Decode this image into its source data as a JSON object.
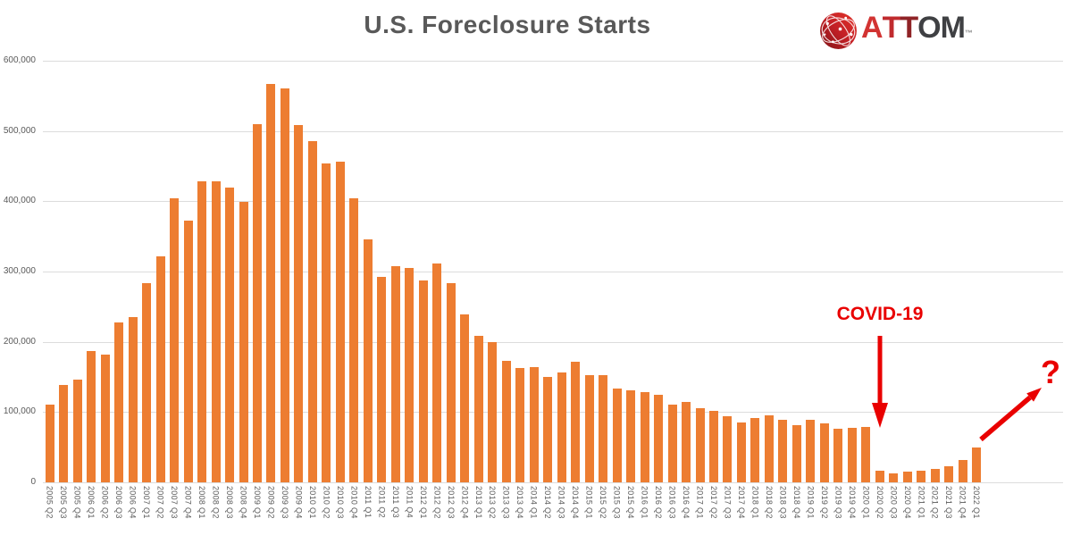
{
  "title": "U.S. Foreclosure Starts",
  "logo": {
    "brand": "ATTOM",
    "tm": "™",
    "icon": "attom-sphere-icon",
    "letters": [
      {
        "ch": "A",
        "color": "#D23332"
      },
      {
        "ch": "T",
        "color": "#C02B2E"
      },
      {
        "ch": "T",
        "color": "#8F2326"
      },
      {
        "ch": "O",
        "color": "#3F4043"
      },
      {
        "ch": "M",
        "color": "#3F4043"
      }
    ]
  },
  "annotations": {
    "covid_label": "COVID-19",
    "question_label": "?"
  },
  "colors": {
    "bar": "#ED7D31",
    "annotation_red": "#E90000",
    "title_gray": "#595959",
    "axis_gray": "#595959",
    "gridline": "#dcdcdc"
  },
  "chart_data": {
    "type": "bar",
    "title": "U.S. Foreclosure Starts",
    "xlabel": "",
    "ylabel": "",
    "ylim": [
      0,
      600000
    ],
    "ytick_interval": 100000,
    "yticks": [
      "600,000",
      "500,000",
      "400,000",
      "300,000",
      "200,000",
      "100,000",
      "0"
    ],
    "grid": true,
    "legend": false,
    "categories": [
      "2005 Q2",
      "2005 Q3",
      "2005 Q4",
      "2006 Q1",
      "2006 Q2",
      "2006 Q3",
      "2006 Q4",
      "2007 Q1",
      "2007 Q2",
      "2007 Q3",
      "2007 Q4",
      "2008 Q1",
      "2008 Q2",
      "2008 Q3",
      "2008 Q4",
      "2009 Q1",
      "2009 Q2",
      "2009 Q3",
      "2009 Q4",
      "2010 Q1",
      "2010 Q2",
      "2010 Q3",
      "2010 Q4",
      "2011 Q1",
      "2011 Q2",
      "2011 Q3",
      "2011 Q4",
      "2012 Q1",
      "2012 Q2",
      "2012 Q3",
      "2012 Q4",
      "2013 Q1",
      "2013 Q2",
      "2013 Q3",
      "2013 Q4",
      "2014 Q1",
      "2014 Q2",
      "2014 Q3",
      "2014 Q4",
      "2015 Q1",
      "2015 Q2",
      "2015 Q3",
      "2015 Q4",
      "2016 Q1",
      "2016 Q2",
      "2016 Q3",
      "2016 Q4",
      "2017 Q1",
      "2017 Q2",
      "2017 Q3",
      "2017 Q4",
      "2018 Q1",
      "2018 Q2",
      "2018 Q3",
      "2018 Q4",
      "2019 Q1",
      "2019 Q2",
      "2019 Q3",
      "2019 Q4",
      "2020 Q1",
      "2020 Q2",
      "2020 Q3",
      "2020 Q4",
      "2021 Q1",
      "2021 Q2",
      "2021 Q3",
      "2021 Q4",
      "2022 Q1"
    ],
    "values": [
      111000,
      139000,
      146000,
      187000,
      182000,
      228000,
      235000,
      284000,
      321000,
      404000,
      373000,
      429000,
      429000,
      420000,
      399000,
      510000,
      567000,
      560000,
      508000,
      486000,
      454000,
      457000,
      404000,
      346000,
      293000,
      308000,
      305000,
      287000,
      311000,
      284000,
      239000,
      209000,
      199000,
      173000,
      163000,
      164000,
      150000,
      156000,
      171000,
      152000,
      152000,
      134000,
      131000,
      128000,
      124000,
      110000,
      114000,
      105000,
      102000,
      94000,
      85000,
      92000,
      95000,
      89000,
      82000,
      89000,
      84000,
      76000,
      78000,
      79000,
      17000,
      13000,
      15000,
      16000,
      19000,
      23000,
      32000,
      50000
    ],
    "annotations": [
      {
        "text": "COVID-19",
        "points_at": "2020 Q2",
        "shape": "down-arrow"
      },
      {
        "text": "?",
        "points_from": "2022 Q1",
        "shape": "up-right-arrow"
      }
    ]
  }
}
